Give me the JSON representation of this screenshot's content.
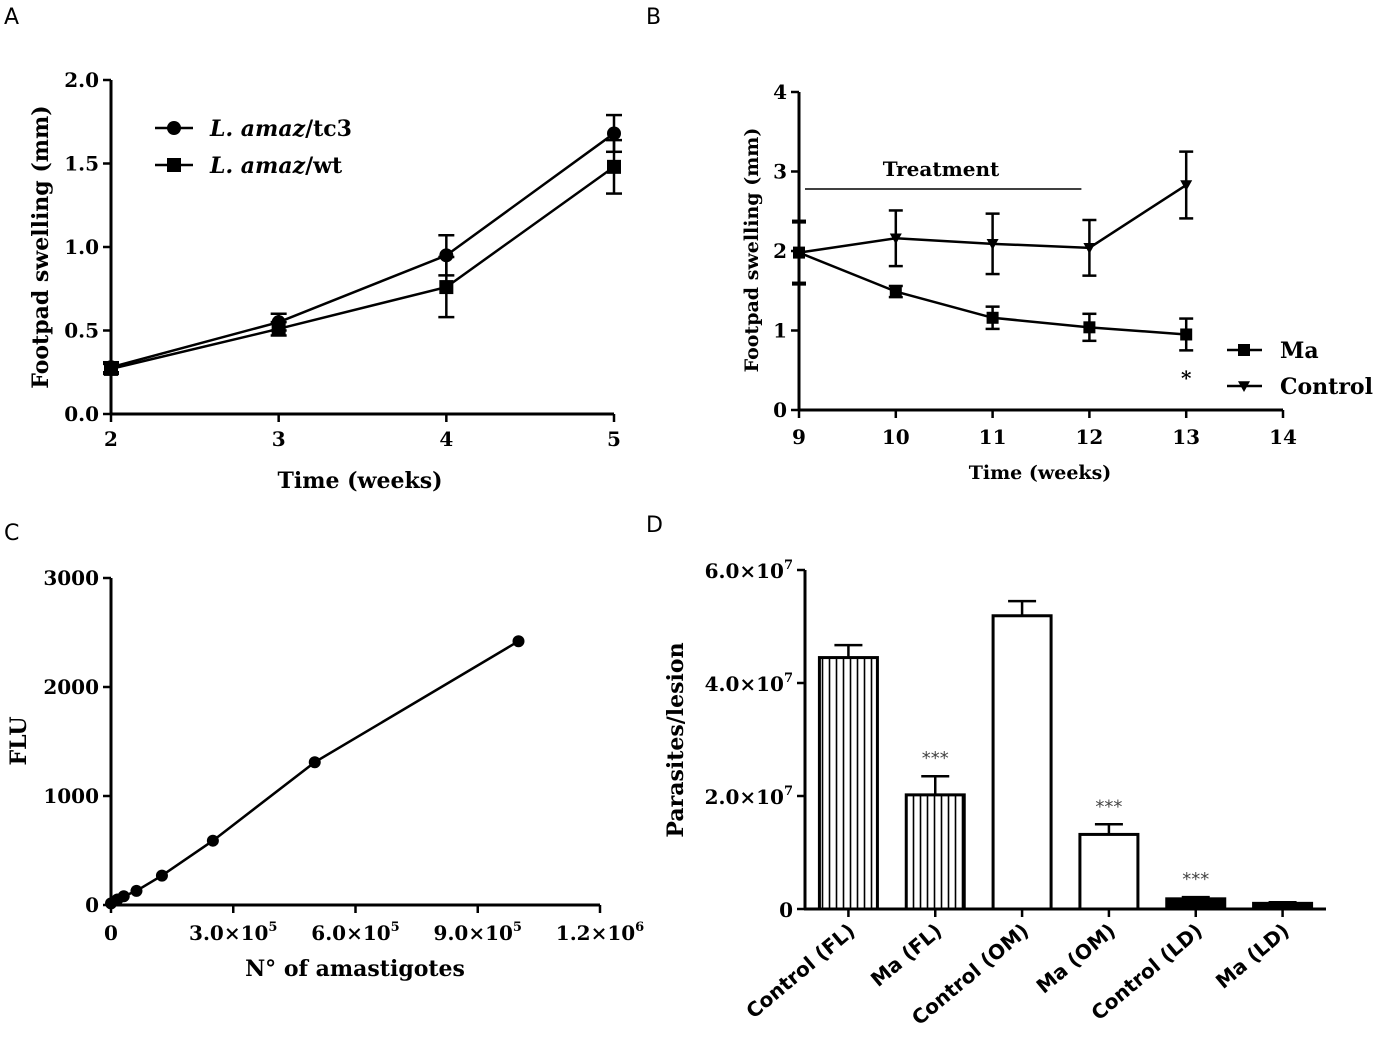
{
  "chart_data": [
    {
      "panel": "A",
      "type": "line",
      "x": [
        2,
        3,
        4,
        5
      ],
      "xlabel": "Time (weeks)",
      "ylabel": "Footpad swelling (mm)",
      "xlim": [
        2,
        5
      ],
      "ylim": [
        0.0,
        2.0
      ],
      "xticks": [
        "2",
        "3",
        "4",
        "5"
      ],
      "yticks": [
        "0.0",
        "0.5",
        "1.0",
        "1.5",
        "2.0"
      ],
      "legend_position": "top-left",
      "series": [
        {
          "name_italic": "L. amaz",
          "name_suffix": "/tc3",
          "marker": "circle",
          "values": [
            0.28,
            0.55,
            0.95,
            1.68
          ],
          "errors": [
            0.03,
            0.05,
            0.12,
            0.11
          ]
        },
        {
          "name_italic": "L. amaz",
          "name_suffix": "/wt",
          "marker": "square",
          "values": [
            0.27,
            0.51,
            0.76,
            1.48
          ],
          "errors": [
            0.03,
            0.04,
            0.18,
            0.16
          ]
        }
      ]
    },
    {
      "panel": "B",
      "type": "line",
      "x": [
        9,
        10,
        11,
        12,
        13
      ],
      "xlabel": "Time (weeks)",
      "ylabel": "Footpad swelling (mm)",
      "xlim": [
        9,
        14
      ],
      "ylim": [
        0,
        4
      ],
      "xticks": [
        "9",
        "10",
        "11",
        "12",
        "13",
        "14"
      ],
      "yticks": [
        "0",
        "1",
        "2",
        "3",
        "4"
      ],
      "legend_position": "bottom-right",
      "annotation": {
        "text": "Treatment",
        "from": 9,
        "to": 12
      },
      "significance": {
        "x": 13,
        "text": "*"
      },
      "series": [
        {
          "name": "Ma",
          "marker": "square",
          "values": [
            1.98,
            1.49,
            1.16,
            1.04,
            0.95
          ],
          "errors": [
            0.38,
            0.07,
            0.14,
            0.17,
            0.2
          ]
        },
        {
          "name": "Control",
          "marker": "triangle-down",
          "values": [
            1.98,
            2.16,
            2.09,
            2.04,
            2.83
          ],
          "errors": [
            0.4,
            0.35,
            0.38,
            0.35,
            0.42
          ]
        }
      ]
    },
    {
      "panel": "C",
      "type": "line",
      "xlabel": "N° of amastigotes",
      "ylabel": "FLU",
      "xlim": [
        0,
        1200000
      ],
      "ylim": [
        0,
        3000
      ],
      "xticks": [
        {
          "value": 0,
          "mant": "0",
          "exp": ""
        },
        {
          "value": 300000,
          "mant": "3.0×10",
          "exp": "5"
        },
        {
          "value": 600000,
          "mant": "6.0×10",
          "exp": "5"
        },
        {
          "value": 900000,
          "mant": "9.0×10",
          "exp": "5"
        },
        {
          "value": 1200000,
          "mant": "1.2×10",
          "exp": "6"
        }
      ],
      "yticks": [
        "0",
        "1000",
        "2000",
        "3000"
      ],
      "series": [
        {
          "name": "FLU",
          "marker": "circle",
          "x": [
            0,
            15625,
            31250,
            62500,
            125000,
            250000,
            500000,
            1000000
          ],
          "values": [
            15,
            50,
            80,
            130,
            270,
            590,
            1310,
            2420
          ]
        }
      ]
    },
    {
      "panel": "D",
      "type": "bar",
      "ylabel": "Parasites/lesion",
      "ylim": [
        0,
        60000000
      ],
      "yticks": [
        {
          "value": 0,
          "mant": "0",
          "exp": ""
        },
        {
          "value": 20000000,
          "mant": "2.0×10",
          "exp": "7"
        },
        {
          "value": 40000000,
          "mant": "4.0×10",
          "exp": "7"
        },
        {
          "value": 60000000,
          "mant": "6.0×10",
          "exp": "7"
        }
      ],
      "categories": [
        "Control (FL)",
        "Ma (FL)",
        "Control (OM)",
        "Ma (OM)",
        "Control (LD)",
        "Ma (LD)"
      ],
      "values": [
        44500000,
        20200000,
        51900000,
        13200000,
        1800000,
        1000000
      ],
      "errors": [
        2200000,
        3300000,
        2600000,
        1800000,
        300000,
        200000
      ],
      "fills": [
        "vstripes",
        "vstripes",
        "white",
        "white",
        "black",
        "black"
      ],
      "significance": [
        "",
        "***",
        "",
        "***",
        "***",
        ""
      ]
    }
  ],
  "panel_letters": [
    "A",
    "B",
    "C",
    "D"
  ]
}
